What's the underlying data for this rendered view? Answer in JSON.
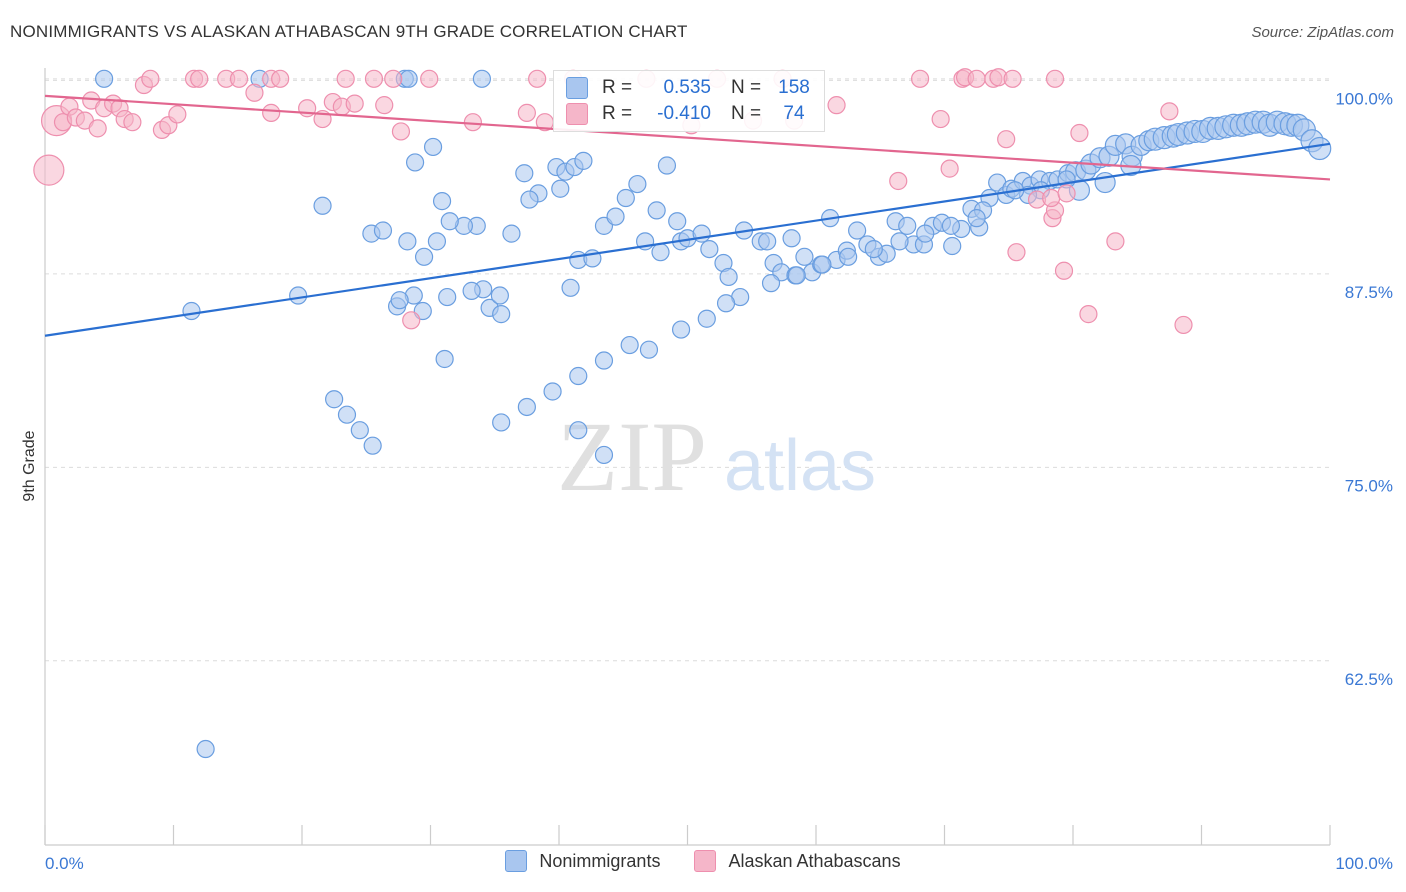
{
  "title": "NONIMMIGRANTS VS ALASKAN ATHABASCAN 9TH GRADE CORRELATION CHART",
  "source": "Source: ZipAtlas.com",
  "watermark": {
    "zip": "ZIP",
    "atlas": "atlas"
  },
  "stats": [
    {
      "r_label": "R =",
      "r_value": "0.535",
      "n_label": "N =",
      "n_value": "158",
      "color": "#a9c6ef"
    },
    {
      "r_label": "R =",
      "r_value": "-0.410",
      "n_label": "N =",
      "n_value": "74",
      "color": "#f5b6c9"
    }
  ],
  "legend": [
    {
      "label": "Nonimmigrants",
      "color": "#a9c6ef"
    },
    {
      "label": "Alaskan Athabascans",
      "color": "#f5b6c9"
    }
  ],
  "chart_data": {
    "type": "scatter",
    "xlabel": "",
    "ylabel": "9th Grade",
    "xlim": [
      0,
      100
    ],
    "ylim": [
      50.6,
      100.8
    ],
    "x_tick_labels": [
      {
        "value": 0,
        "label": "0.0%"
      },
      {
        "value": 100,
        "label": "100.0%"
      }
    ],
    "y_ticks": [
      {
        "value": 100,
        "label": "100.0%"
      },
      {
        "value": 87.5,
        "label": "87.5%"
      },
      {
        "value": 75,
        "label": "75.0%"
      },
      {
        "value": 62.5,
        "label": "62.5%"
      }
    ],
    "grid": true,
    "legend_position": "bottom-center",
    "series": [
      {
        "name": "Nonimmigrants",
        "color": "#6a9ee0",
        "fill": "#a9c6ef",
        "trend": {
          "x": [
            0,
            100
          ],
          "y": [
            83.5,
            95.9
          ],
          "color": "#2a6fd1"
        },
        "points": [
          [
            4.6,
            100.1
          ],
          [
            16.7,
            100.1
          ],
          [
            28,
            100.1
          ],
          [
            28.3,
            100.1
          ],
          [
            34,
            100.1
          ],
          [
            11.4,
            85.1
          ],
          [
            19.7,
            86.1
          ],
          [
            21.6,
            91.9
          ],
          [
            27.4,
            85.4
          ],
          [
            28.2,
            89.6
          ],
          [
            28.7,
            86.1
          ],
          [
            25.4,
            90.1
          ],
          [
            26.3,
            90.3
          ],
          [
            27.6,
            85.8
          ],
          [
            28.8,
            94.7
          ],
          [
            29.4,
            85.1
          ],
          [
            30.2,
            95.7
          ],
          [
            30.9,
            92.2
          ],
          [
            31.3,
            86
          ],
          [
            31.1,
            82
          ],
          [
            33.6,
            90.6
          ],
          [
            32.6,
            90.6
          ],
          [
            34.1,
            86.5
          ],
          [
            34.6,
            85.3
          ],
          [
            35.5,
            84.9
          ],
          [
            33.2,
            86.4
          ],
          [
            35.4,
            86.1
          ],
          [
            36.3,
            90.1
          ],
          [
            37.3,
            94
          ],
          [
            38.4,
            92.7
          ],
          [
            37.7,
            92.3
          ],
          [
            39.8,
            94.4
          ],
          [
            40.5,
            94.1
          ],
          [
            41.2,
            94.4
          ],
          [
            41.9,
            94.8
          ],
          [
            40.1,
            93
          ],
          [
            41.5,
            88.4
          ],
          [
            40.9,
            86.6
          ],
          [
            42.6,
            88.5
          ],
          [
            43.5,
            90.6
          ],
          [
            44.4,
            91.2
          ],
          [
            45.2,
            92.4
          ],
          [
            46.1,
            93.3
          ],
          [
            46.7,
            89.6
          ],
          [
            47.6,
            91.6
          ],
          [
            47.9,
            88.9
          ],
          [
            48.4,
            94.5
          ],
          [
            49.2,
            90.9
          ],
          [
            49.5,
            89.6
          ],
          [
            50,
            89.8
          ],
          [
            51.1,
            90.1
          ],
          [
            51.7,
            89.1
          ],
          [
            52.8,
            88.2
          ],
          [
            53.2,
            87.3
          ],
          [
            54.1,
            86
          ],
          [
            54.4,
            90.3
          ],
          [
            55.7,
            89.6
          ],
          [
            56.2,
            89.6
          ],
          [
            56.7,
            88.2
          ],
          [
            57.3,
            87.6
          ],
          [
            58.1,
            89.8
          ],
          [
            58.4,
            87.4
          ],
          [
            59.1,
            88.6
          ],
          [
            59.7,
            87.6
          ],
          [
            60.4,
            88.1
          ],
          [
            61.1,
            91.1
          ],
          [
            61.6,
            88.4
          ],
          [
            62.4,
            89
          ],
          [
            63.2,
            90.3
          ],
          [
            64,
            89.4
          ],
          [
            64.9,
            88.6
          ],
          [
            65.5,
            88.8
          ],
          [
            66.2,
            90.9
          ],
          [
            67.1,
            90.6
          ],
          [
            67.6,
            89.4
          ],
          [
            68.4,
            89.4
          ],
          [
            69.1,
            90.6
          ],
          [
            69.8,
            90.8
          ],
          [
            70.6,
            89.3
          ],
          [
            71.3,
            90.4
          ],
          [
            72.1,
            91.7
          ],
          [
            72.7,
            90.5
          ],
          [
            73.5,
            92.4
          ],
          [
            74.1,
            93.4
          ],
          [
            74.8,
            92.6
          ],
          [
            75.2,
            93
          ],
          [
            76.1,
            93.5
          ],
          [
            76.7,
            93.2
          ],
          [
            77.4,
            93.6
          ],
          [
            78.2,
            93.5
          ],
          [
            78.8,
            93.6
          ],
          [
            79.6,
            94
          ],
          [
            80.2,
            94.1
          ],
          [
            81,
            94.2
          ],
          [
            81.4,
            94.6
          ],
          [
            82.1,
            95
          ],
          [
            82.8,
            95.1
          ],
          [
            83.3,
            95.8
          ],
          [
            84.1,
            95.9
          ],
          [
            84.6,
            95.1
          ],
          [
            85.3,
            95.8
          ],
          [
            85.9,
            96.1
          ],
          [
            86.4,
            96.2
          ],
          [
            87.1,
            96.3
          ],
          [
            87.8,
            96.4
          ],
          [
            88.2,
            96.5
          ],
          [
            88.9,
            96.6
          ],
          [
            89.5,
            96.7
          ],
          [
            90.1,
            96.7
          ],
          [
            90.7,
            96.9
          ],
          [
            91.3,
            96.9
          ],
          [
            91.9,
            97
          ],
          [
            92.5,
            97.1
          ],
          [
            93.1,
            97.1
          ],
          [
            93.6,
            97.2
          ],
          [
            94.2,
            97.3
          ],
          [
            94.8,
            97.3
          ],
          [
            95.3,
            97.1
          ],
          [
            95.9,
            97.3
          ],
          [
            96.5,
            97.2
          ],
          [
            97,
            97.1
          ],
          [
            97.5,
            97.1
          ],
          [
            98,
            96.8
          ],
          [
            98.6,
            96.1
          ],
          [
            99.2,
            95.6
          ],
          [
            84.5,
            94.5
          ],
          [
            82.5,
            93.4
          ],
          [
            80.5,
            92.9
          ],
          [
            79.5,
            93.6
          ],
          [
            77.5,
            92.9
          ],
          [
            76.5,
            92.6
          ],
          [
            75.5,
            92.9
          ],
          [
            73,
            91.6
          ],
          [
            72.5,
            91.1
          ],
          [
            70.5,
            90.6
          ],
          [
            68.5,
            90.1
          ],
          [
            66.5,
            89.6
          ],
          [
            64.5,
            89.1
          ],
          [
            62.5,
            88.6
          ],
          [
            60.5,
            88.1
          ],
          [
            58.5,
            87.4
          ],
          [
            56.5,
            86.9
          ],
          [
            53,
            85.6
          ],
          [
            51.5,
            84.6
          ],
          [
            49.5,
            83.9
          ],
          [
            47,
            82.6
          ],
          [
            45.5,
            82.9
          ],
          [
            43.5,
            81.9
          ],
          [
            41.5,
            80.9
          ],
          [
            39.5,
            79.9
          ],
          [
            37.5,
            78.9
          ],
          [
            35.5,
            77.9
          ],
          [
            22.5,
            79.4
          ],
          [
            23.5,
            78.4
          ],
          [
            24.5,
            77.4
          ],
          [
            25.5,
            76.4
          ],
          [
            41.5,
            77.4
          ],
          [
            43.5,
            75.8
          ],
          [
            12.5,
            56.8
          ],
          [
            31.5,
            90.9
          ],
          [
            30.5,
            89.6
          ],
          [
            29.5,
            88.6
          ]
        ]
      },
      {
        "name": "Alaskan Athabascans",
        "color": "#ee8fae",
        "fill": "#f5b6c9",
        "trend": {
          "x": [
            0,
            100
          ],
          "y": [
            99,
            93.6
          ],
          "color": "#e2668f"
        },
        "points": [
          [
            0.3,
            94.2
          ],
          [
            0.9,
            97.4
          ],
          [
            1.4,
            97.3
          ],
          [
            1.9,
            98.3
          ],
          [
            2.4,
            97.6
          ],
          [
            3.1,
            97.4
          ],
          [
            3.6,
            98.7
          ],
          [
            4.1,
            96.9
          ],
          [
            4.6,
            98.2
          ],
          [
            5.3,
            98.5
          ],
          [
            5.8,
            98.2
          ],
          [
            6.2,
            97.5
          ],
          [
            6.8,
            97.3
          ],
          [
            7.7,
            99.7
          ],
          [
            8.2,
            100.1
          ],
          [
            9.1,
            96.8
          ],
          [
            9.6,
            97.1
          ],
          [
            10.3,
            97.8
          ],
          [
            11.6,
            100.1
          ],
          [
            12,
            100.1
          ],
          [
            14.1,
            100.1
          ],
          [
            15.1,
            100.1
          ],
          [
            16.3,
            99.2
          ],
          [
            17.6,
            100.1
          ],
          [
            18.3,
            100.1
          ],
          [
            17.6,
            97.9
          ],
          [
            20.4,
            98.2
          ],
          [
            21.6,
            97.5
          ],
          [
            22.4,
            98.6
          ],
          [
            23.1,
            98.3
          ],
          [
            23.4,
            100.1
          ],
          [
            24.1,
            98.5
          ],
          [
            25.6,
            100.1
          ],
          [
            26.4,
            98.4
          ],
          [
            27.1,
            100.1
          ],
          [
            27.7,
            96.7
          ],
          [
            28.5,
            84.5
          ],
          [
            29.9,
            100.1
          ],
          [
            33.3,
            97.3
          ],
          [
            37.5,
            97.9
          ],
          [
            38.3,
            100.1
          ],
          [
            38.9,
            97.3
          ],
          [
            41.1,
            100.1
          ],
          [
            46.8,
            100.1
          ],
          [
            50.3,
            97.1
          ],
          [
            52.3,
            100.1
          ],
          [
            55.1,
            97.4
          ],
          [
            57.4,
            100.1
          ],
          [
            58.3,
            97.4
          ],
          [
            61.6,
            98.4
          ],
          [
            66.4,
            93.5
          ],
          [
            68.1,
            100.1
          ],
          [
            70.4,
            94.3
          ],
          [
            69.7,
            97.5
          ],
          [
            71.4,
            100.1
          ],
          [
            71.6,
            100.2
          ],
          [
            72.5,
            100.1
          ],
          [
            73.8,
            100.1
          ],
          [
            74.2,
            100.2
          ],
          [
            75.3,
            100.1
          ],
          [
            74.8,
            96.2
          ],
          [
            75.6,
            88.9
          ],
          [
            77.2,
            92.3
          ],
          [
            78.4,
            91.1
          ],
          [
            78.6,
            91.6
          ],
          [
            78.6,
            100.1
          ],
          [
            78.3,
            92.4
          ],
          [
            79.3,
            87.7
          ],
          [
            79.5,
            92.7
          ],
          [
            81.2,
            84.9
          ],
          [
            80.5,
            96.6
          ],
          [
            83.3,
            89.6
          ],
          [
            87.5,
            98
          ],
          [
            88.6,
            84.2
          ]
        ]
      }
    ]
  }
}
